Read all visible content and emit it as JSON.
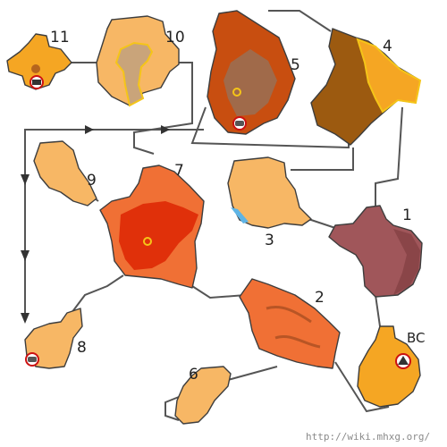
{
  "map": {
    "areas": [
      {
        "id": "11",
        "label": "11",
        "color": "#f5a623",
        "has_camp_icon": true,
        "has_pickaxe_icon": false
      },
      {
        "id": "10",
        "label": "10",
        "color": "#f7b765",
        "has_camp_icon": false,
        "has_pickaxe_icon": false
      },
      {
        "id": "5",
        "label": "5",
        "color": "#c84e10",
        "has_camp_icon": false,
        "has_pickaxe_icon": true
      },
      {
        "id": "4",
        "label": "4",
        "color": "#9c5a10",
        "has_camp_icon": false,
        "has_pickaxe_icon": false
      },
      {
        "id": "9",
        "label": "9",
        "color": "#f7b765",
        "has_camp_icon": false,
        "has_pickaxe_icon": false
      },
      {
        "id": "7",
        "label": "7",
        "color": "#e8300e",
        "has_camp_icon": false,
        "has_pickaxe_icon": false
      },
      {
        "id": "3",
        "label": "3",
        "color": "#f7b765",
        "has_camp_icon": false,
        "has_pickaxe_icon": false
      },
      {
        "id": "1",
        "label": "1",
        "color": "#a0565a",
        "has_camp_icon": false,
        "has_pickaxe_icon": false
      },
      {
        "id": "2",
        "label": "2",
        "color": "#f07035",
        "has_camp_icon": false,
        "has_pickaxe_icon": false
      },
      {
        "id": "8",
        "label": "8",
        "color": "#f7b765",
        "has_camp_icon": false,
        "has_pickaxe_icon": true
      },
      {
        "id": "6",
        "label": "6",
        "color": "#f7b765",
        "has_camp_icon": false,
        "has_pickaxe_icon": false
      },
      {
        "id": "BC",
        "label": "BC",
        "color": "#f5a623",
        "has_camp_icon": true,
        "has_pickaxe_icon": false
      }
    ],
    "credit": "http://wiki.mhxg.org/",
    "colors": {
      "connector": "#555555",
      "arrow": "#333333",
      "icon_ring": "#cc1111"
    }
  }
}
